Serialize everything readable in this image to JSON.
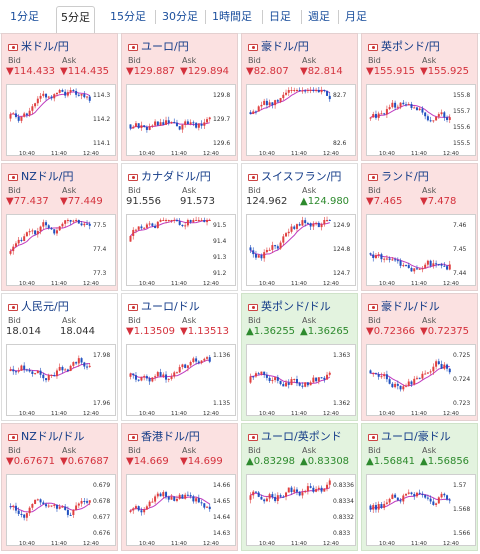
{
  "tabs": [
    "1分足",
    "5分足",
    "15分足",
    "30分足",
    "1時間足",
    "日足",
    "週足",
    "月足"
  ],
  "active_tab": 1,
  "bid_label": "Bid",
  "ask_label": "Ask",
  "x_ticks": [
    "10:40",
    "11:40",
    "12:40"
  ],
  "pairs": [
    {
      "name": "米ドル/円",
      "bid": "▼114.433",
      "ask": "▼114.435",
      "dir": "down",
      "bg": "pink",
      "yticks": [
        "114.3",
        "114.2",
        "114.1"
      ]
    },
    {
      "name": "ユーロ/円",
      "bid": "▼129.887",
      "ask": "▼129.894",
      "dir": "down",
      "bg": "pink",
      "yticks": [
        "129.8",
        "129.7",
        "129.6"
      ]
    },
    {
      "name": "豪ドル/円",
      "bid": "▼82.807",
      "ask": "▼82.814",
      "dir": "down",
      "bg": "pink",
      "yticks": [
        "82.7",
        "82.6"
      ]
    },
    {
      "name": "英ポンド/円",
      "bid": "▼155.915",
      "ask": "▼155.925",
      "dir": "down",
      "bg": "pink",
      "yticks": [
        "155.8",
        "155.7",
        "155.6",
        "155.5"
      ]
    },
    {
      "name": "NZドル/円",
      "bid": "▼77.437",
      "ask": "▼77.449",
      "dir": "down",
      "bg": "pink",
      "yticks": [
        "77.5",
        "77.4",
        "77.3"
      ]
    },
    {
      "name": "カナダドル/円",
      "bid": "91.556",
      "ask": "91.573",
      "dir": "neu",
      "bg": "white",
      "yticks": [
        "91.5",
        "91.4",
        "91.3",
        "91.2"
      ]
    },
    {
      "name": "スイスフラン/円",
      "bid": "124.962",
      "ask": "▲124.980",
      "dir": "neu",
      "askdir": "up",
      "bg": "white",
      "yticks": [
        "124.9",
        "124.8",
        "124.7"
      ]
    },
    {
      "name": "ランド/円",
      "bid": "▼7.465",
      "ask": "▼7.478",
      "dir": "down",
      "bg": "pink",
      "yticks": [
        "7.46",
        "7.45",
        "7.44"
      ]
    },
    {
      "name": "人民元/円",
      "bid": "18.014",
      "ask": "18.044",
      "dir": "neu",
      "bg": "white",
      "yticks": [
        "17.98",
        "17.96"
      ]
    },
    {
      "name": "ユーロ/ドル",
      "bid": "▼1.13509",
      "ask": "▼1.13513",
      "dir": "down",
      "bg": "white",
      "yticks": [
        "1.136",
        "1.135"
      ]
    },
    {
      "name": "英ポンド/ドル",
      "bid": "▲1.36255",
      "ask": "▲1.36265",
      "dir": "up",
      "bg": "green",
      "yticks": [
        "1.363",
        "1.362"
      ]
    },
    {
      "name": "豪ドル/ドル",
      "bid": "▼0.72366",
      "ask": "▼0.72375",
      "dir": "down",
      "bg": "pink",
      "yticks": [
        "0.725",
        "0.724",
        "0.723"
      ]
    },
    {
      "name": "NZドル/ドル",
      "bid": "▼0.67671",
      "ask": "▼0.67687",
      "dir": "down",
      "bg": "pink",
      "yticks": [
        "0.679",
        "0.678",
        "0.677",
        "0.676"
      ]
    },
    {
      "name": "香港ドル/円",
      "bid": "▼14.669",
      "ask": "▼14.699",
      "dir": "down",
      "bg": "pink",
      "yticks": [
        "14.66",
        "14.65",
        "14.64",
        "14.63"
      ]
    },
    {
      "name": "ユーロ/英ポンド",
      "bid": "▲0.83298",
      "ask": "▲0.83308",
      "dir": "up",
      "bg": "green",
      "yticks": [
        "0.8336",
        "0.8334",
        "0.8332",
        "0.833"
      ]
    },
    {
      "name": "ユーロ/豪ドル",
      "bid": "▲1.56841",
      "ask": "▲1.56856",
      "dir": "up",
      "bg": "green",
      "yticks": [
        "1.57",
        "1.568",
        "1.566"
      ]
    }
  ]
}
